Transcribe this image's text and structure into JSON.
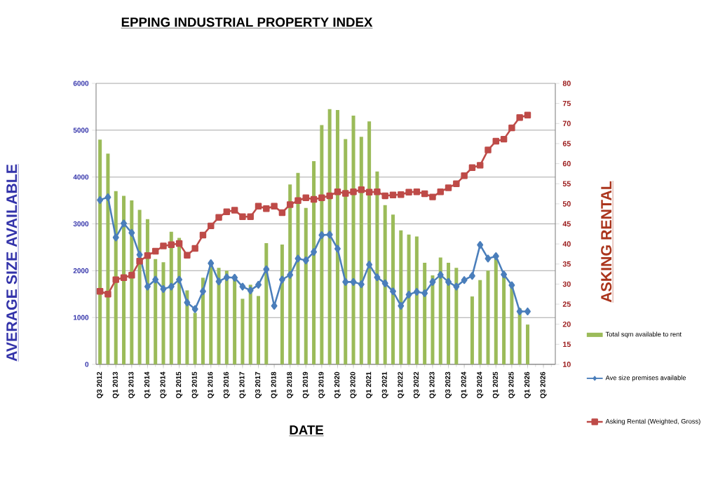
{
  "chart_data": {
    "type": "bar",
    "title": "EPPING INDUSTRIAL PROPERTY INDEX",
    "xlabel": "DATE",
    "ylabel": "AVERAGE  SIZE AVAILABLE",
    "y2label": "ASKING RENTAL",
    "categories": [
      "Q3 2012",
      null,
      "Q1 2013",
      null,
      "Q3 2013",
      null,
      "Q1 2014",
      null,
      "Q3 2014",
      null,
      "Q1 2015",
      null,
      "Q3 2015",
      null,
      "Q1 2016",
      null,
      "Q3 2016",
      null,
      "Q1 2017",
      null,
      "Q3 2017",
      null,
      "Q1 2018",
      null,
      "Q3 2018",
      null,
      "Q1 2019",
      null,
      "Q3 2019",
      null,
      "Q1 2020",
      null,
      "Q3 2020",
      null,
      "Q1 2021",
      null,
      "Q3 2021",
      null,
      "Q1 2022",
      null,
      "Q3 2022",
      null,
      "Q1 2023",
      null,
      "Q3 2023",
      null,
      "Q1 2024",
      null,
      "Q3 2024",
      null,
      "Q1 2025",
      null,
      "Q3 2025",
      null,
      "Q1 2026",
      null,
      "Q3 2026",
      null
    ],
    "series": [
      {
        "name": "Total sqm available to rent",
        "color": "#9bbb59",
        "values": [
          4800,
          4500,
          3700,
          3600,
          3500,
          3300,
          3100,
          2250,
          2180,
          2830,
          2700,
          1580,
          1100,
          1850,
          2150,
          2060,
          2000,
          1850,
          1400,
          1700,
          1460,
          2590,
          null,
          2560,
          3840,
          4090,
          3340,
          4340,
          5110,
          5450,
          5430,
          4810,
          5310,
          4860,
          5190,
          4120,
          3400,
          3200,
          2860,
          2770,
          2730,
          2170,
          1900,
          2280,
          2170,
          2060,
          null,
          1450,
          1800,
          2000,
          2300,
          1900,
          1650,
          1200,
          850,
          null,
          null,
          null
        ]
      },
      {
        "name": "Ave size premises available",
        "type": "line",
        "color": "#4a7ebb",
        "marker": "diamond",
        "values": [
          3510,
          3570,
          2710,
          3010,
          2810,
          2340,
          1660,
          1810,
          1610,
          1660,
          1810,
          1320,
          1180,
          1560,
          2160,
          1770,
          1860,
          1850,
          1660,
          1580,
          1700,
          2030,
          1250,
          1810,
          1910,
          2260,
          2220,
          2400,
          2760,
          2770,
          2470,
          1760,
          1760,
          1710,
          2130,
          1860,
          1730,
          1560,
          1250,
          1490,
          1550,
          1520,
          1760,
          1910,
          1760,
          1660,
          1800,
          1890,
          2550,
          2260,
          2310,
          1920,
          1690,
          1130,
          1130,
          null,
          null,
          null
        ]
      },
      {
        "name": "Asking Rental (Weighted, Gross)",
        "type": "line",
        "axis": "y2",
        "color": "#be4b48",
        "marker": "square",
        "values": [
          28.2,
          27.5,
          31.1,
          31.6,
          32.2,
          35.7,
          37.1,
          38.2,
          39.5,
          39.8,
          40.1,
          37.2,
          38.9,
          42.2,
          44.5,
          46.6,
          48.0,
          48.4,
          46.8,
          46.8,
          49.4,
          48.8,
          49.4,
          47.8,
          49.8,
          50.8,
          51.5,
          51.1,
          51.5,
          52.0,
          53.0,
          52.6,
          53.0,
          53.5,
          52.9,
          53.0,
          52.0,
          52.2,
          52.3,
          52.9,
          53.0,
          52.5,
          51.7,
          53.0,
          54.0,
          55.0,
          57.0,
          59.0,
          59.6,
          63.4,
          65.6,
          66.1,
          68.9,
          71.5,
          72.1,
          null,
          null,
          null
        ]
      }
    ],
    "ylim": [
      0,
      6000
    ],
    "yticks": [
      0,
      1000,
      2000,
      3000,
      4000,
      5000,
      6000
    ],
    "y2lim": [
      10,
      80
    ],
    "y2ticks": [
      10,
      15,
      20,
      25,
      30,
      35,
      40,
      45,
      50,
      55,
      60,
      65,
      70,
      75,
      80
    ],
    "grid": "y",
    "legend": "right"
  }
}
